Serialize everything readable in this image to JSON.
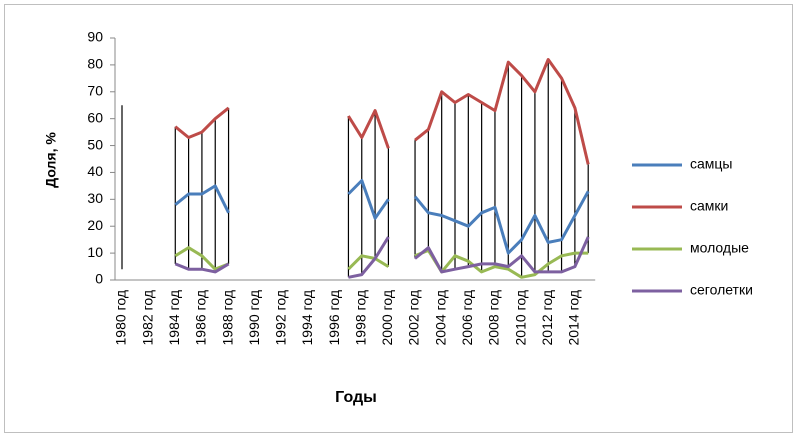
{
  "chart_data": {
    "type": "line",
    "x_label": "Годы",
    "y_label": "Доля, %",
    "categories": [
      "1980 год",
      null,
      "1982 год",
      null,
      "1984 год",
      null,
      "1986 год",
      null,
      "1988 год",
      null,
      "1990 год",
      null,
      "1992 год",
      null,
      "1994 год",
      null,
      "1996 год",
      null,
      "1998 год",
      null,
      "2000 год",
      null,
      "2002 год",
      null,
      "2004 год",
      null,
      "2006 год",
      null,
      "2008 год",
      null,
      "2010 год",
      null,
      "2012 год",
      null,
      "2014 год",
      null
    ],
    "ylim": [
      0,
      90
    ],
    "yticks": [
      0,
      10,
      20,
      30,
      40,
      50,
      60,
      70,
      80,
      90
    ],
    "high_low_lines": true,
    "legend": "right",
    "series": [
      {
        "name": "самцы",
        "color": "#4a7ebb",
        "values": [
          null,
          null,
          null,
          null,
          28,
          32,
          32,
          35,
          25,
          null,
          null,
          null,
          null,
          null,
          null,
          null,
          null,
          32,
          37,
          23,
          30,
          null,
          31,
          25,
          24,
          22,
          20,
          25,
          27,
          10,
          15,
          24,
          14,
          15,
          24,
          33
        ]
      },
      {
        "name": "самки",
        "color": "#be4b48",
        "values": [
          65,
          null,
          null,
          null,
          57,
          53,
          55,
          60,
          64,
          null,
          null,
          null,
          null,
          null,
          null,
          null,
          null,
          61,
          53,
          63,
          49,
          null,
          52,
          56,
          70,
          66,
          69,
          66,
          63,
          81,
          76,
          70,
          82,
          75,
          64,
          43
        ]
      },
      {
        "name": "молодые",
        "color": "#98b954",
        "values": [
          null,
          null,
          null,
          null,
          9,
          12,
          9,
          4,
          6,
          null,
          null,
          null,
          null,
          null,
          null,
          null,
          null,
          4,
          9,
          8,
          5,
          null,
          9,
          11,
          3,
          9,
          7,
          3,
          5,
          4,
          1,
          2,
          6,
          9,
          10,
          10
        ]
      },
      {
        "name": "сеголетки",
        "color": "#7d60a0",
        "values": [
          4,
          null,
          null,
          null,
          6,
          4,
          4,
          3,
          6,
          null,
          null,
          null,
          null,
          null,
          null,
          null,
          null,
          1,
          2,
          8,
          16,
          null,
          8,
          12,
          3,
          4,
          5,
          6,
          6,
          5,
          9,
          3,
          3,
          3,
          5,
          16
        ]
      }
    ]
  }
}
